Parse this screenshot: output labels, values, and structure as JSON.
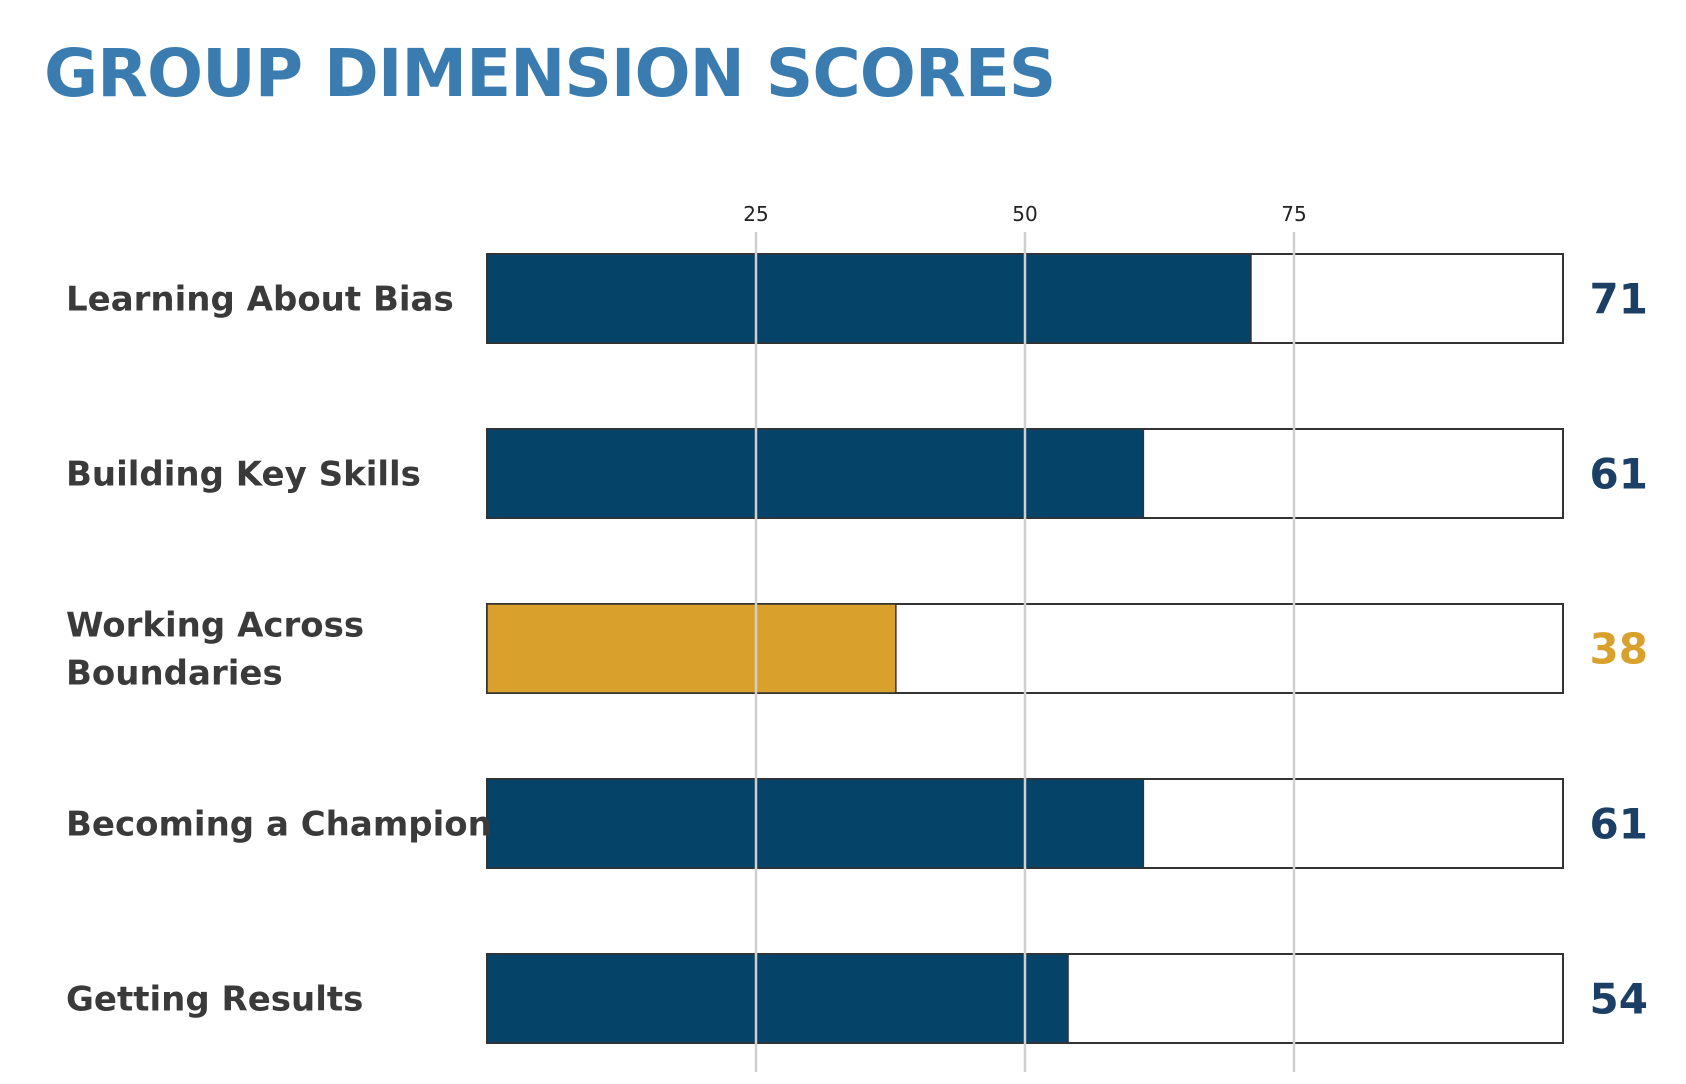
{
  "colors": {
    "title": "#3b7cb0",
    "bar_default": "#054468",
    "bar_low": "#d9a02b",
    "value_default": "#1c3f66",
    "value_low": "#d9a02b",
    "gridline": "#cfcfcf",
    "bar_border": "#333333"
  },
  "chart_data": {
    "type": "bar",
    "orientation": "horizontal",
    "title": "GROUP DIMENSION SCORES",
    "xlabel": "",
    "ylabel": "",
    "xlim": [
      0,
      100
    ],
    "ticks": [
      25,
      50,
      75
    ],
    "grid": true,
    "categories": [
      [
        "Learning About Bias"
      ],
      [
        "Building Key Skills"
      ],
      [
        "Working Across",
        "Boundaries"
      ],
      [
        "Becoming a Champion"
      ],
      [
        "Getting Results"
      ]
    ],
    "values": [
      71,
      61,
      38,
      61,
      54
    ],
    "highlight": [
      "default",
      "default",
      "low",
      "default",
      "default"
    ]
  }
}
